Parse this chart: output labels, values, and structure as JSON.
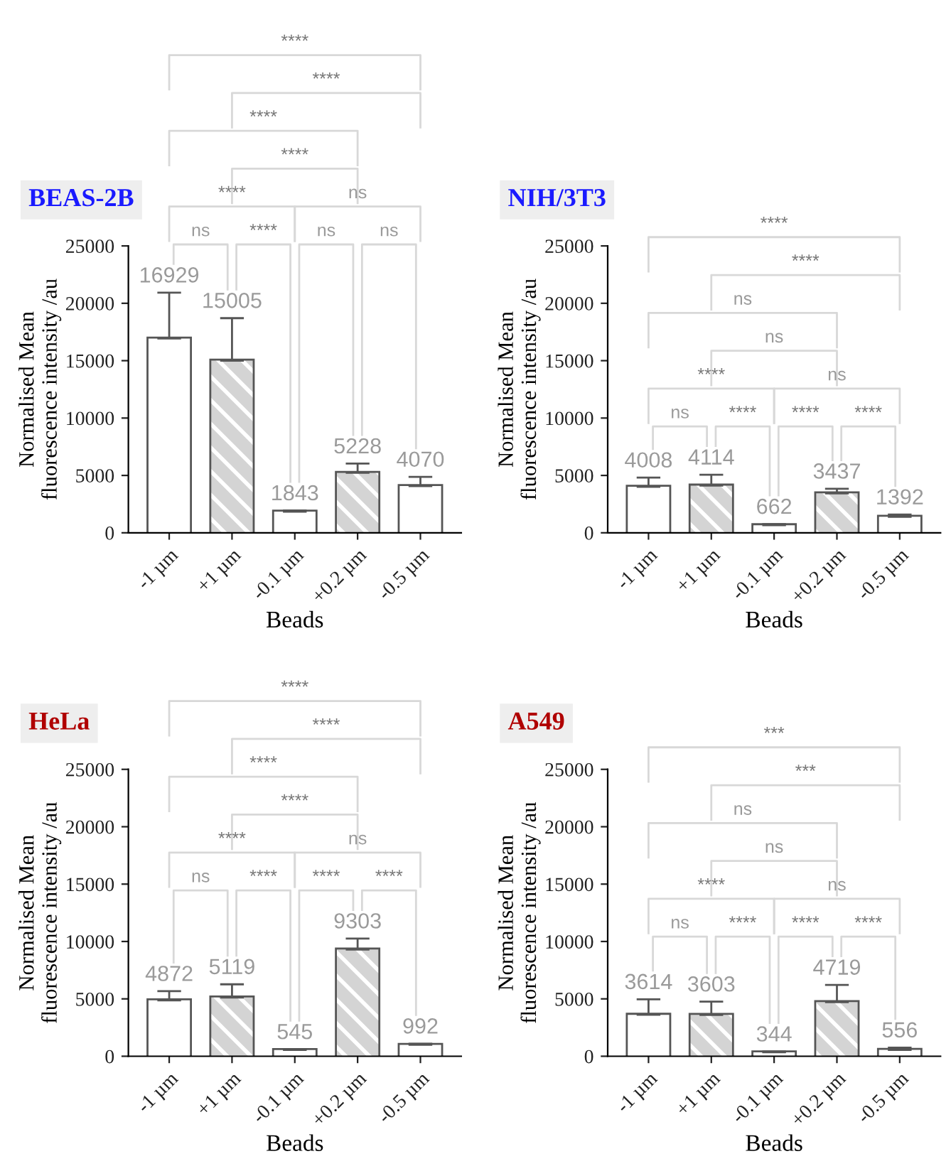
{
  "chart_data": [
    {
      "type": "bar",
      "title": "BEAS-2B",
      "xlabel": "Beads",
      "ylabel": "Normalised Mean\nfluorescence intensity /au",
      "categories": [
        "-1 µm",
        "+1 µm",
        "-0.1 µm",
        "+0.2 µm",
        "-0.5 µm"
      ],
      "values": [
        16929,
        15005,
        1843,
        5228,
        4070
      ],
      "errors": [
        4000,
        3700,
        100,
        800,
        800
      ],
      "colors": [
        "#ffffff",
        "#d4d4d4",
        "#ffffff",
        "#d4d4d4",
        "#ffffff"
      ],
      "data_labels": true,
      "ylim": [
        0,
        25000
      ],
      "yticks": [
        0,
        5000,
        10000,
        15000,
        20000,
        25000
      ],
      "grid": false,
      "legend": false,
      "annotations": [
        "ns",
        "****",
        "ns",
        "ns",
        "****",
        "ns",
        "****",
        "****",
        "****",
        "****"
      ]
    },
    {
      "type": "bar",
      "title": "NIH/3T3",
      "xlabel": "Beads",
      "ylabel": "Normalised Mean\nfluorescence intensity /au",
      "categories": [
        "-1 µm",
        "+1 µm",
        "-0.1 µm",
        "+0.2 µm",
        "-0.5 µm"
      ],
      "values": [
        4008,
        4114,
        662,
        3437,
        1392
      ],
      "errors": [
        800,
        950,
        100,
        400,
        200
      ],
      "colors": [
        "#ffffff",
        "#d4d4d4",
        "#ffffff",
        "#d4d4d4",
        "#ffffff"
      ],
      "data_labels": true,
      "ylim": [
        0,
        25000
      ],
      "yticks": [
        0,
        5000,
        10000,
        15000,
        20000,
        25000
      ],
      "grid": false,
      "legend": false,
      "annotations": [
        "ns",
        "****",
        "****",
        "****",
        "****",
        "ns",
        "ns",
        "ns",
        "****",
        "****"
      ]
    },
    {
      "type": "bar",
      "title": "HeLa",
      "xlabel": "Beads",
      "ylabel": "Normalised Mean\nfluorescence intensity /au",
      "categories": [
        "-1 µm",
        "+1 µm",
        "-0.1 µm",
        "+0.2 µm",
        "-0.5 µm"
      ],
      "values": [
        4872,
        5119,
        545,
        9303,
        992
      ],
      "errors": [
        800,
        1150,
        60,
        950,
        100
      ],
      "colors": [
        "#ffffff",
        "#d4d4d4",
        "#ffffff",
        "#d4d4d4",
        "#ffffff"
      ],
      "data_labels": true,
      "ylim": [
        0,
        25000
      ],
      "yticks": [
        0,
        5000,
        10000,
        15000,
        20000,
        25000
      ],
      "grid": false,
      "legend": false,
      "annotations": [
        "ns",
        "****",
        "****",
        "****",
        "****",
        "ns",
        "****",
        "****",
        "****",
        "****"
      ]
    },
    {
      "type": "bar",
      "title": "A549",
      "xlabel": "Beads",
      "ylabel": "Normalised Mean\nfluorescence intensity /au",
      "categories": [
        "-1 µm",
        "+1 µm",
        "-0.1 µm",
        "+0.2 µm",
        "-0.5 µm"
      ],
      "values": [
        3614,
        3603,
        344,
        4719,
        556
      ],
      "errors": [
        1350,
        1150,
        60,
        1500,
        200
      ],
      "colors": [
        "#ffffff",
        "#d4d4d4",
        "#ffffff",
        "#d4d4d4",
        "#ffffff"
      ],
      "data_labels": true,
      "ylim": [
        0,
        25000
      ],
      "yticks": [
        0,
        5000,
        10000,
        15000,
        20000,
        25000
      ],
      "grid": false,
      "legend": false,
      "annotations": [
        "ns",
        "****",
        "****",
        "****",
        "****",
        "ns",
        "ns",
        "ns",
        "***",
        "***"
      ]
    }
  ]
}
